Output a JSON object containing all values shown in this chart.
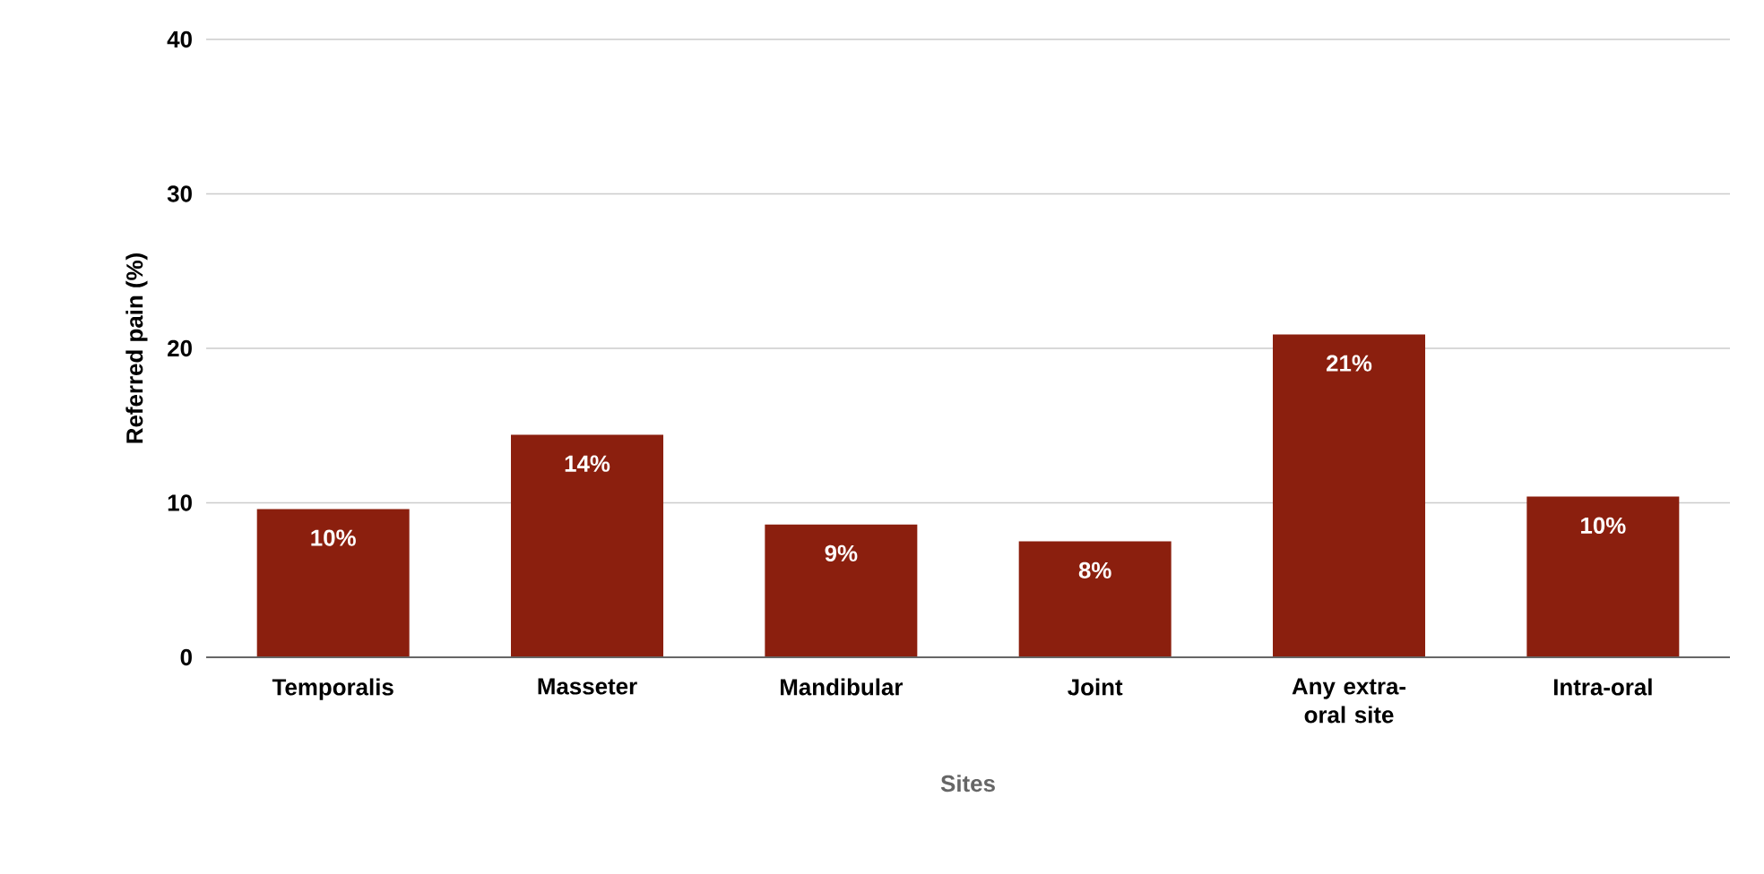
{
  "chart_data": {
    "type": "bar",
    "xlabel": "Sites",
    "ylabel": "Referred pain (%)",
    "categories": [
      "Temporalis",
      "Masseter",
      "Mandibular",
      "Joint",
      "Any extra-oral site",
      "Intra-oral"
    ],
    "values": [
      9.6,
      14.4,
      8.6,
      7.5,
      20.9,
      10.4
    ],
    "value_labels": [
      "10%",
      "14%",
      "9%",
      "8%",
      "21%",
      "10%"
    ],
    "color": "#8b1f0e",
    "ylim": [
      0,
      40
    ],
    "yticks": [
      0,
      10,
      20,
      30,
      40
    ],
    "grid": "y"
  }
}
